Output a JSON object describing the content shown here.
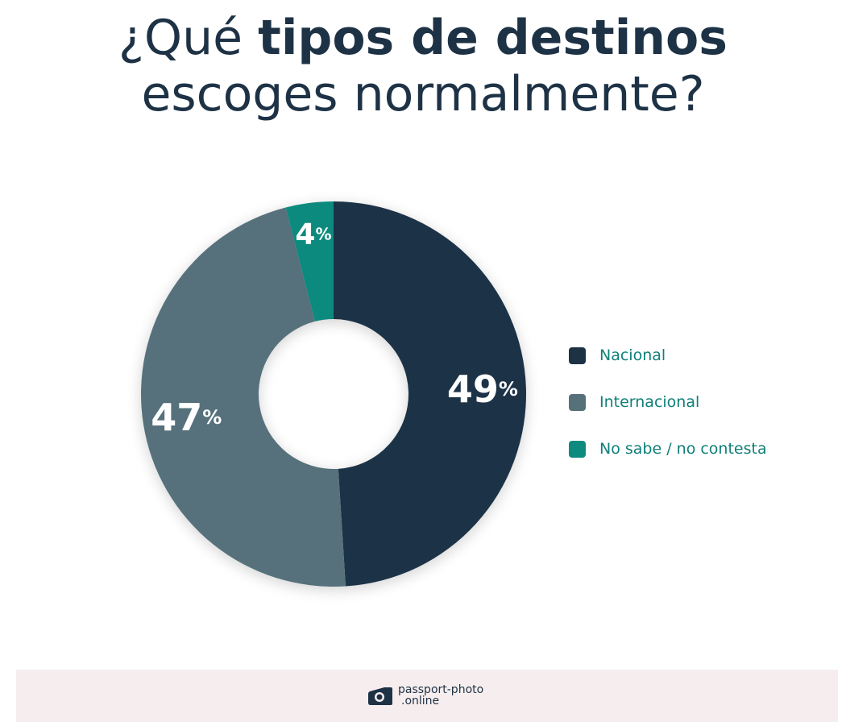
{
  "title": {
    "prefix": "¿Qué ",
    "bold": "tipos de destinos",
    "line2": "escoges normalmente?"
  },
  "chart_data": {
    "type": "pie",
    "donut": true,
    "categories": [
      "Nacional",
      "Internacional",
      "No sabe / no contesta"
    ],
    "values": [
      49,
      47,
      4
    ],
    "unit": "%",
    "colors": [
      "#1e3246",
      "#57717b",
      "#0f8a7e"
    ],
    "legend_position": "right"
  },
  "footer": {
    "brand_line1": "passport-photo",
    "brand_line2": ".online",
    "logo_icon": "camera-icon"
  }
}
